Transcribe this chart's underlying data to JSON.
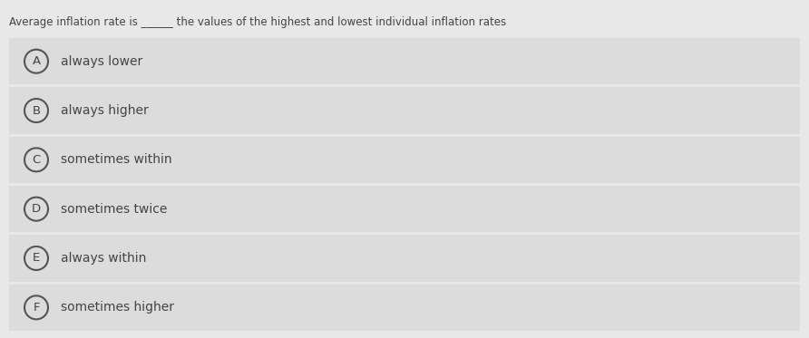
{
  "title": "Average inflation rate is ______ the values of the highest and lowest individual inflation rates",
  "options": [
    {
      "letter": "A",
      "text": "always lower"
    },
    {
      "letter": "B",
      "text": "always higher"
    },
    {
      "letter": "C",
      "text": "sometimes within"
    },
    {
      "letter": "D",
      "text": "sometimes twice"
    },
    {
      "letter": "E",
      "text": "always within"
    },
    {
      "letter": "F",
      "text": "sometimes higher"
    }
  ],
  "bg_color": "#e8e8e8",
  "option_bg_color": "#dcdcdc",
  "sep_color": "#f0f0f0",
  "text_color": "#444444",
  "circle_edge_color": "#555555",
  "title_fontsize": 8.5,
  "option_fontsize": 10.0,
  "letter_fontsize": 9.5,
  "fig_width": 8.92,
  "fig_height": 3.73,
  "dpi": 100
}
